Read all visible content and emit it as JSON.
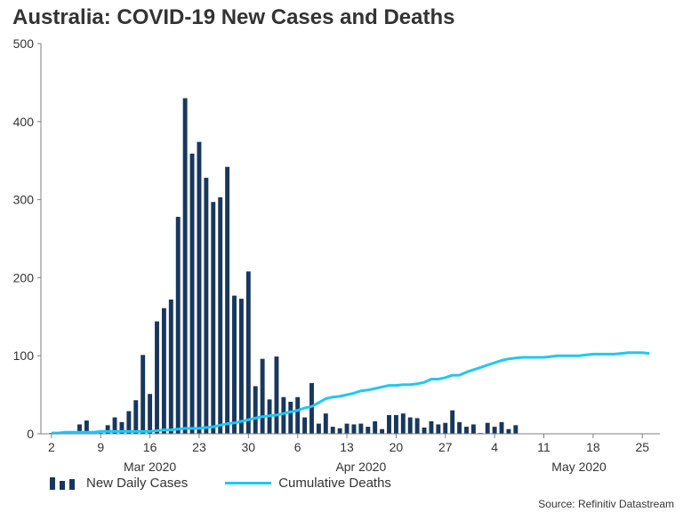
{
  "title": "Australia: COVID-19 New Cases and Deaths",
  "source": "Source: Refinitiv Datastream",
  "colors": {
    "cases": "#17375e",
    "deaths": "#1ec8f5",
    "axis": "#7f7f7f",
    "text": "#333333"
  },
  "legend": {
    "cases": "New Daily Cases",
    "deaths": "Cumulative Deaths"
  },
  "chart_data": {
    "type": "bar+line",
    "title": "Australia: COVID-19 New Cases and Deaths",
    "ylim": [
      0,
      500
    ],
    "yticks": [
      0,
      100,
      200,
      300,
      400,
      500
    ],
    "x_start_label": "2020-03-01",
    "day_ticks": [
      {
        "day": 1,
        "label": "2"
      },
      {
        "day": 8,
        "label": "9"
      },
      {
        "day": 15,
        "label": "16"
      },
      {
        "day": 22,
        "label": "23"
      },
      {
        "day": 29,
        "label": "30"
      },
      {
        "day": 36,
        "label": "6"
      },
      {
        "day": 43,
        "label": "13"
      },
      {
        "day": 50,
        "label": "20"
      },
      {
        "day": 57,
        "label": "27"
      },
      {
        "day": 64,
        "label": "4"
      },
      {
        "day": 71,
        "label": "11"
      },
      {
        "day": 78,
        "label": "18"
      },
      {
        "day": 85,
        "label": "25"
      }
    ],
    "month_labels": [
      {
        "day": 15,
        "label": "Mar 2020"
      },
      {
        "day": 45,
        "label": "Apr 2020"
      },
      {
        "day": 76,
        "label": "May 2020"
      }
    ],
    "series": [
      {
        "name": "New Daily Cases",
        "type": "bar",
        "values": [
          1,
          1,
          1,
          1,
          12,
          17,
          1,
          1,
          11,
          21,
          15,
          29,
          43,
          101,
          51,
          144,
          161,
          172,
          278,
          430,
          359,
          374,
          328,
          297,
          303,
          342,
          177,
          173,
          208,
          61,
          96,
          44,
          99,
          47,
          41,
          47,
          21,
          65,
          13,
          26,
          9,
          7,
          13,
          12,
          13,
          9,
          16,
          6,
          24,
          24,
          26,
          21,
          20,
          8,
          16,
          12,
          14,
          30,
          15,
          9,
          12,
          1,
          14,
          9,
          15,
          6,
          11
        ]
      },
      {
        "name": "Cumulative Deaths",
        "type": "line",
        "values": [
          1,
          1,
          2,
          2,
          2,
          2,
          2,
          3,
          3,
          3,
          3,
          3,
          3,
          3,
          3,
          4,
          5,
          5,
          6,
          7,
          7,
          7,
          8,
          9,
          11,
          13,
          14,
          16,
          18,
          20,
          22,
          23,
          24,
          26,
          28,
          30,
          33,
          35,
          40,
          45,
          47,
          48,
          50,
          52,
          55,
          56,
          58,
          60,
          62,
          62,
          63,
          63,
          64,
          66,
          70,
          70,
          72,
          75,
          75,
          79,
          82,
          85,
          88,
          91,
          94,
          96,
          97,
          98,
          98,
          98,
          98,
          99,
          100,
          100,
          100,
          100,
          101,
          102,
          102,
          102,
          102,
          103,
          104,
          104,
          104,
          103
        ]
      }
    ]
  }
}
